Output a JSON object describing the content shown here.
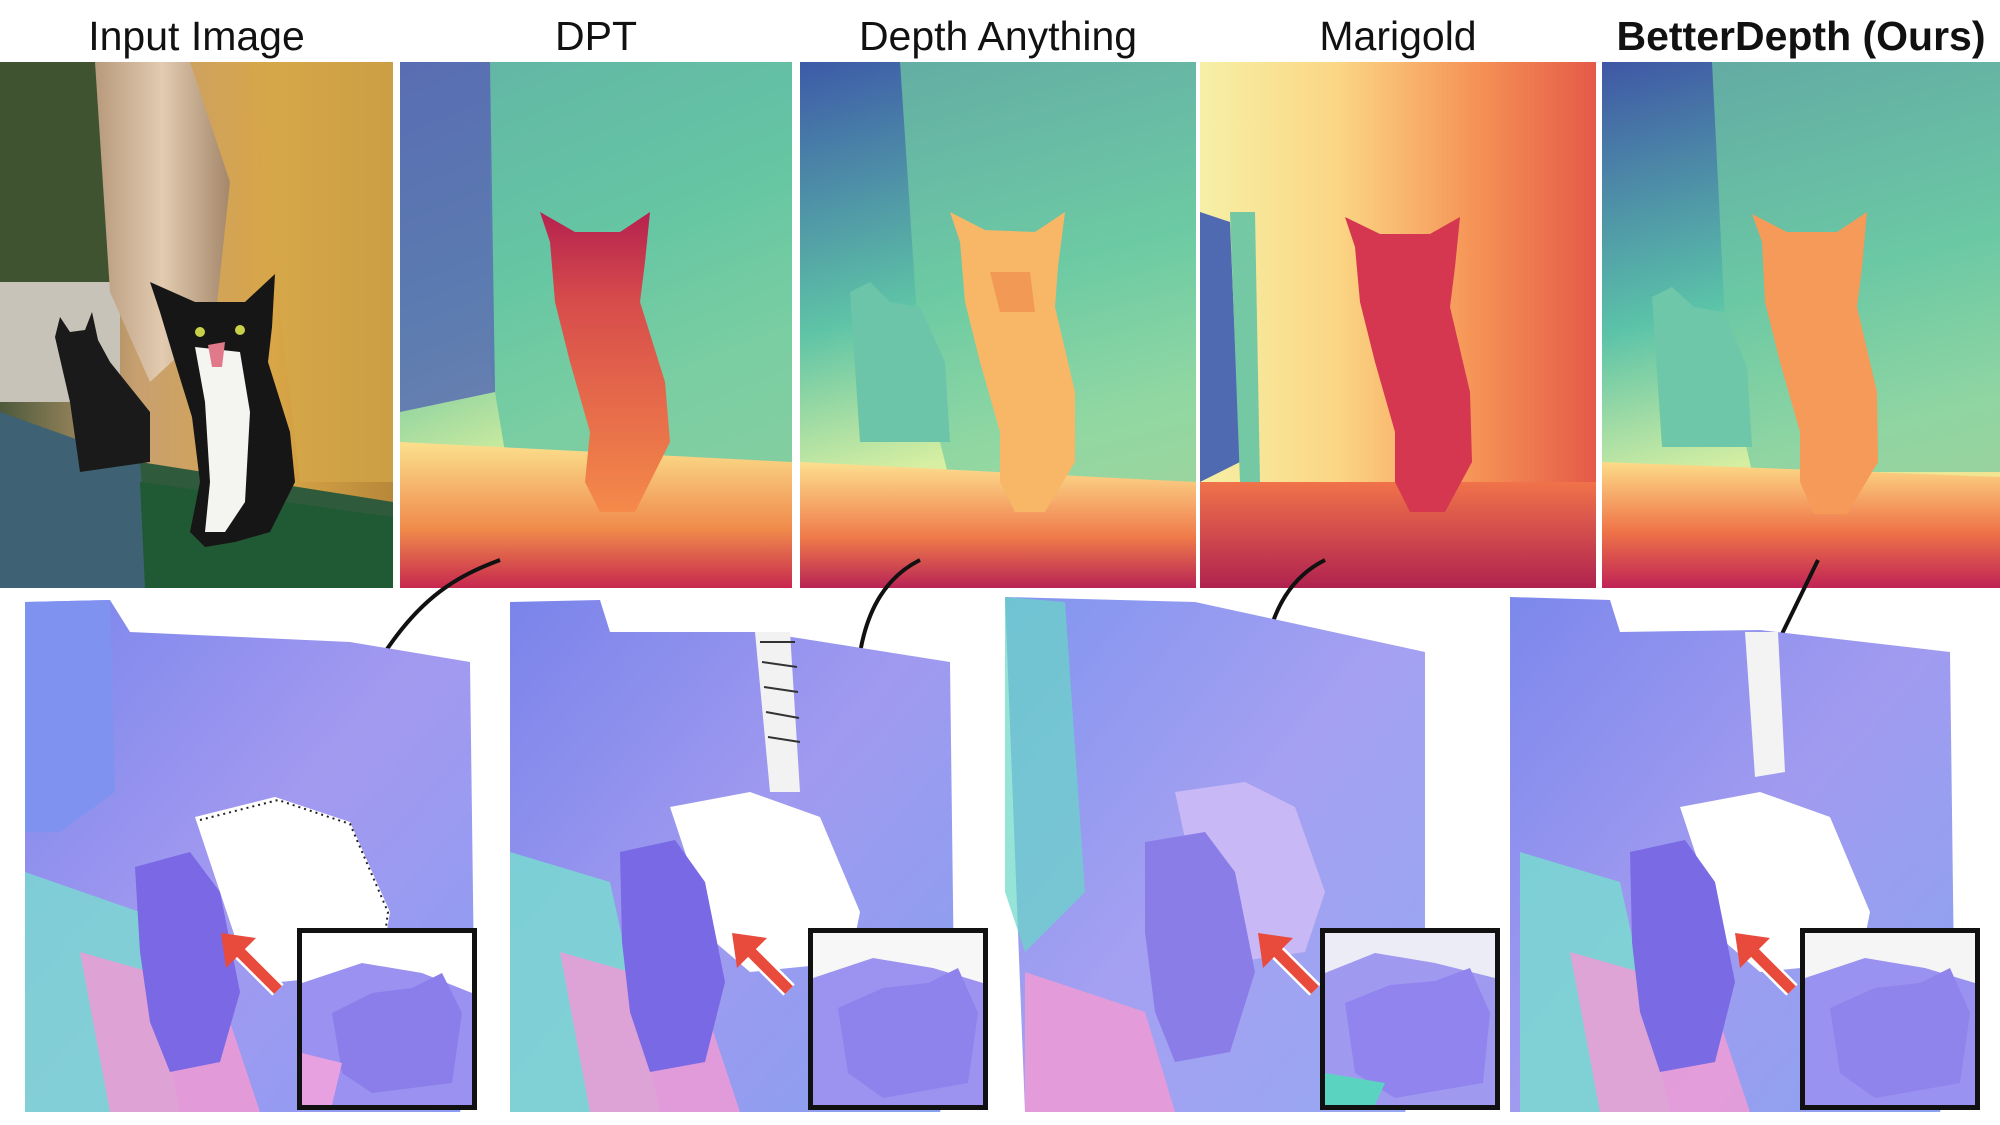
{
  "figure": {
    "columns": [
      {
        "title": "Input Image",
        "kind": "photo"
      },
      {
        "title": "DPT",
        "kind": "depth-spectral"
      },
      {
        "title": "Depth Anything",
        "kind": "depth-spectral"
      },
      {
        "title": "Marigold",
        "kind": "depth-warm"
      },
      {
        "title": "BetterDepth (Ours)",
        "kind": "depth-spectral",
        "emphasis": "bold"
      }
    ],
    "bottom_row": [
      {
        "method": "DPT",
        "content": "surface-normal-reconstruction",
        "has_inset": true,
        "highlight_arrow_color": "#e84a3c"
      },
      {
        "method": "Depth Anything",
        "content": "surface-normal-reconstruction",
        "has_inset": true,
        "highlight_arrow_color": "#e84a3c"
      },
      {
        "method": "Marigold",
        "content": "surface-normal-reconstruction",
        "has_inset": true,
        "highlight_arrow_color": "#e84a3c"
      },
      {
        "method": "BetterDepth (Ours)",
        "content": "surface-normal-reconstruction",
        "has_inset": true,
        "highlight_arrow_color": "#e84a3c"
      }
    ],
    "colors": {
      "normal_blue": "#8f8cf2",
      "normal_pink": "#f29ad8",
      "normal_cyan": "#7fe3d4",
      "spectral_near": "#d3325a",
      "spectral_mid": "#f7e79b",
      "spectral_far": "#4a58a8",
      "arrow_red": "#e84a3c"
    }
  }
}
